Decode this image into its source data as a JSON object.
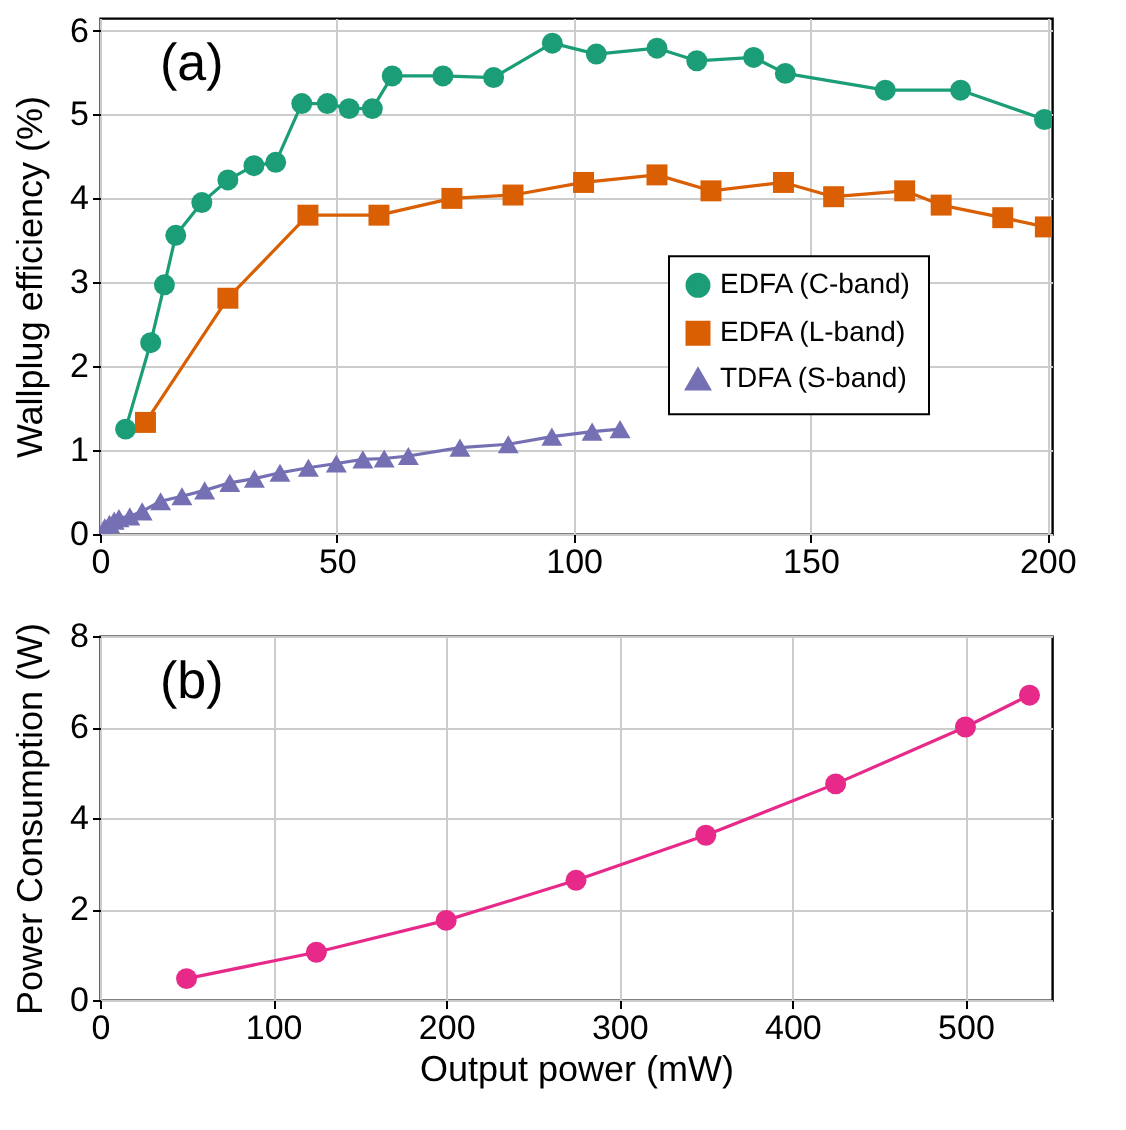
{
  "chart_data": [
    {
      "type": "line",
      "ylabel": "Wallplug efficiency (%)",
      "annotations": [
        "(a)"
      ],
      "xlim": [
        0,
        201
      ],
      "xticks": [
        0,
        50,
        100,
        150,
        200
      ],
      "ylim": [
        0,
        6.15
      ],
      "yticks": [
        0,
        1,
        2,
        3,
        4,
        5,
        6
      ],
      "grid": true,
      "legend": "right",
      "series": [
        {
          "name": "EDFA (C-band)",
          "color": "#1b9e77",
          "marker": "circle",
          "x": [
            5.4,
            10.7,
            13.6,
            16.0,
            21.5,
            27.0,
            32.5,
            37.1,
            42.6,
            48.0,
            52.6,
            57.5,
            61.7,
            72.4,
            83.1,
            95.5,
            104.8,
            117.6,
            126.0,
            138.0,
            144.7,
            165.8,
            181.7,
            199.4
          ],
          "values": [
            1.25,
            2.28,
            2.97,
            3.56,
            3.95,
            4.22,
            4.39,
            4.43,
            5.13,
            5.13,
            5.07,
            5.07,
            5.46,
            5.46,
            5.44,
            5.85,
            5.72,
            5.79,
            5.64,
            5.68,
            5.49,
            5.29,
            5.29,
            4.94
          ]
        },
        {
          "name": "EDFA (L-band)",
          "color": "#d95f02",
          "marker": "square",
          "x": [
            9.6,
            27.0,
            43.9,
            58.9,
            74.3,
            87.2,
            102.1,
            117.6,
            129.0,
            144.3,
            154.9,
            169.9,
            177.6,
            190.6,
            199.6
          ],
          "values": [
            1.33,
            2.81,
            3.8,
            3.8,
            4.0,
            4.04,
            4.19,
            4.28,
            4.09,
            4.19,
            4.02,
            4.09,
            3.92,
            3.77,
            3.66
          ]
        },
        {
          "name": "TDFA (S-band)",
          "color": "#7570b3",
          "marker": "triangle",
          "x": [
            1.0,
            2.0,
            3.0,
            4.0,
            6.3,
            8.9,
            12.8,
            17.3,
            22.1,
            27.4,
            32.6,
            38.0,
            44.0,
            49.9,
            55.5,
            60.0,
            65.1,
            76.0,
            86.2,
            95.4,
            103.9,
            109.8
          ],
          "values": [
            0.08,
            0.12,
            0.16,
            0.19,
            0.21,
            0.27,
            0.39,
            0.45,
            0.52,
            0.61,
            0.66,
            0.73,
            0.79,
            0.84,
            0.89,
            0.9,
            0.93,
            1.03,
            1.07,
            1.16,
            1.22,
            1.25
          ]
        }
      ]
    },
    {
      "type": "line",
      "xlabel": "Output power (mW)",
      "ylabel": "Power Consumption (W)",
      "annotations": [
        "(b)"
      ],
      "xlim": [
        0,
        550
      ],
      "xticks": [
        0,
        100,
        200,
        300,
        400,
        500
      ],
      "ylim": [
        0,
        8
      ],
      "yticks": [
        0,
        2,
        4,
        6,
        8
      ],
      "grid": true,
      "marker": "circle",
      "series": [
        {
          "color": "#e7298a",
          "x": [
            50,
            125,
            200,
            275,
            350,
            425,
            500,
            537
          ],
          "values": [
            0.47,
            1.05,
            1.75,
            2.63,
            3.62,
            4.75,
            6.0,
            6.7
          ]
        }
      ]
    }
  ]
}
